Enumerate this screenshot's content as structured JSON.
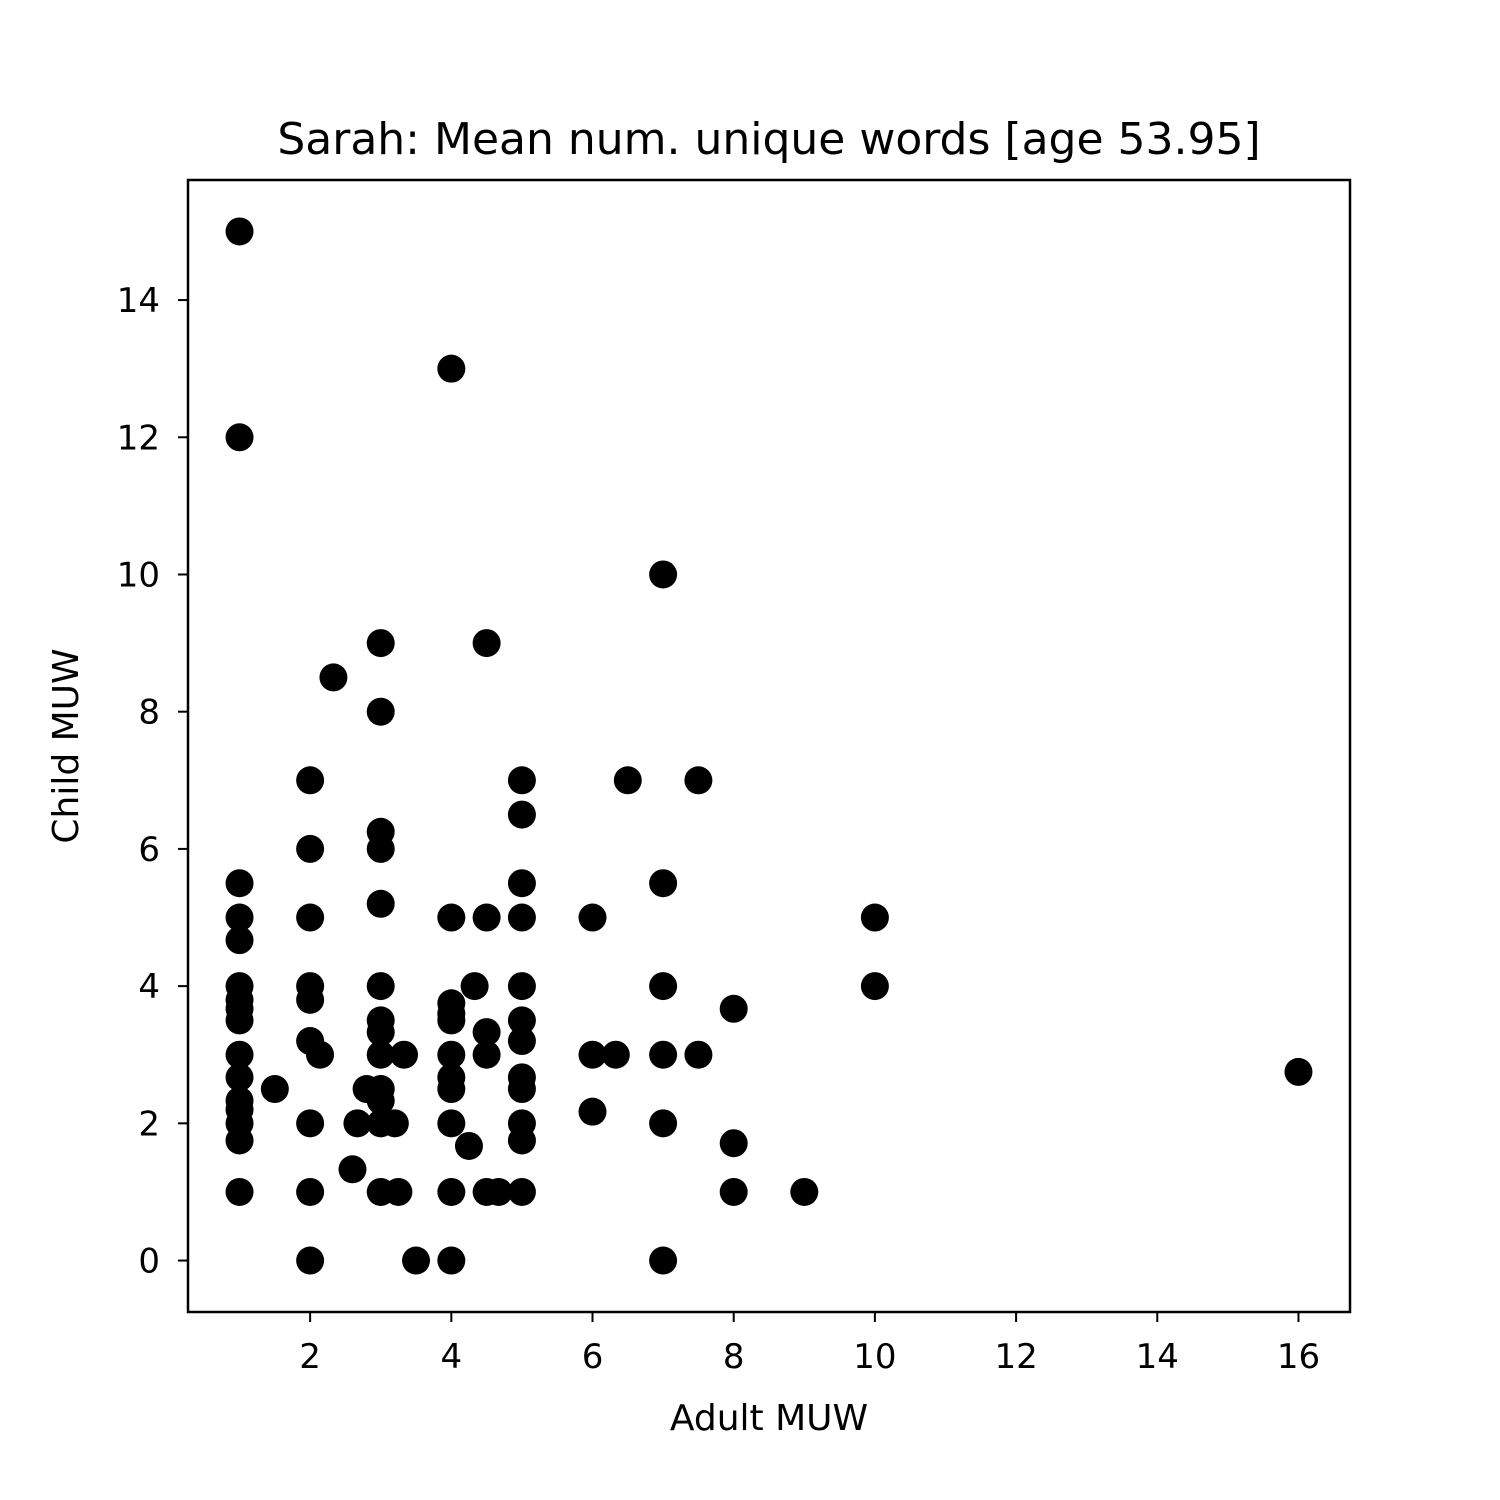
{
  "chart_data": {
    "type": "scatter",
    "title": "Sarah: Mean num. unique words [age 53.95]",
    "xlabel": "Adult MUW",
    "ylabel": "Child MUW",
    "xlim": [
      0.27,
      16.73
    ],
    "ylim": [
      -0.75,
      15.75
    ],
    "xticks": [
      2,
      4,
      6,
      8,
      10,
      12,
      14,
      16
    ],
    "yticks": [
      0,
      2,
      4,
      6,
      8,
      10,
      12,
      14
    ],
    "grid": false,
    "marker_color": "#000000",
    "points": [
      [
        1,
        15
      ],
      [
        1,
        12
      ],
      [
        1,
        5.5
      ],
      [
        1,
        5
      ],
      [
        1,
        4.67
      ],
      [
        1,
        4
      ],
      [
        1,
        3.8
      ],
      [
        1,
        3.67
      ],
      [
        1,
        3.5
      ],
      [
        1,
        3
      ],
      [
        1,
        2.67
      ],
      [
        1,
        2.33
      ],
      [
        1,
        2.2
      ],
      [
        1,
        2
      ],
      [
        1,
        1.75
      ],
      [
        1,
        1
      ],
      [
        1.5,
        2.5
      ],
      [
        2,
        7
      ],
      [
        2,
        6
      ],
      [
        2,
        5
      ],
      [
        2,
        4
      ],
      [
        2,
        3.8
      ],
      [
        2,
        3.2
      ],
      [
        2.14,
        3
      ],
      [
        2,
        2
      ],
      [
        2,
        1
      ],
      [
        2,
        0
      ],
      [
        2.33,
        8.5
      ],
      [
        2.6,
        1.33
      ],
      [
        2.67,
        2
      ],
      [
        2.8,
        2.5
      ],
      [
        3,
        9
      ],
      [
        3,
        8
      ],
      [
        3,
        6.25
      ],
      [
        3,
        6
      ],
      [
        3,
        5.2
      ],
      [
        3,
        4
      ],
      [
        3,
        3.5
      ],
      [
        3,
        3.33
      ],
      [
        3,
        3
      ],
      [
        3,
        2.5
      ],
      [
        3,
        2.33
      ],
      [
        3,
        2
      ],
      [
        3,
        1
      ],
      [
        3.2,
        2
      ],
      [
        3.25,
        1
      ],
      [
        3.33,
        3
      ],
      [
        3.5,
        0
      ],
      [
        4,
        13
      ],
      [
        4,
        5
      ],
      [
        4,
        3.75
      ],
      [
        4,
        3.6
      ],
      [
        4,
        3.5
      ],
      [
        4,
        3
      ],
      [
        4,
        2.67
      ],
      [
        4,
        2.5
      ],
      [
        4,
        2
      ],
      [
        4,
        1
      ],
      [
        4,
        0
      ],
      [
        4.25,
        1.67
      ],
      [
        4.33,
        4
      ],
      [
        4.5,
        9
      ],
      [
        4.5,
        5
      ],
      [
        4.5,
        3.33
      ],
      [
        4.5,
        3
      ],
      [
        4.5,
        1
      ],
      [
        4.67,
        1
      ],
      [
        5,
        7
      ],
      [
        5,
        6.5
      ],
      [
        5,
        5.5
      ],
      [
        5,
        5
      ],
      [
        5,
        4
      ],
      [
        5,
        3.5
      ],
      [
        5,
        3.2
      ],
      [
        5,
        2.67
      ],
      [
        5,
        2.5
      ],
      [
        5,
        2
      ],
      [
        5,
        1.75
      ],
      [
        5,
        1
      ],
      [
        6,
        5
      ],
      [
        6,
        3
      ],
      [
        6,
        2.17
      ],
      [
        6.33,
        3
      ],
      [
        6.5,
        7
      ],
      [
        7,
        10
      ],
      [
        7,
        5.5
      ],
      [
        7,
        4
      ],
      [
        7,
        3
      ],
      [
        7,
        2
      ],
      [
        7,
        0
      ],
      [
        7.5,
        7
      ],
      [
        7.5,
        3
      ],
      [
        8,
        3.67
      ],
      [
        8,
        1.71
      ],
      [
        8,
        1
      ],
      [
        9,
        1
      ],
      [
        10,
        5
      ],
      [
        10,
        4
      ],
      [
        16,
        2.75
      ]
    ]
  }
}
